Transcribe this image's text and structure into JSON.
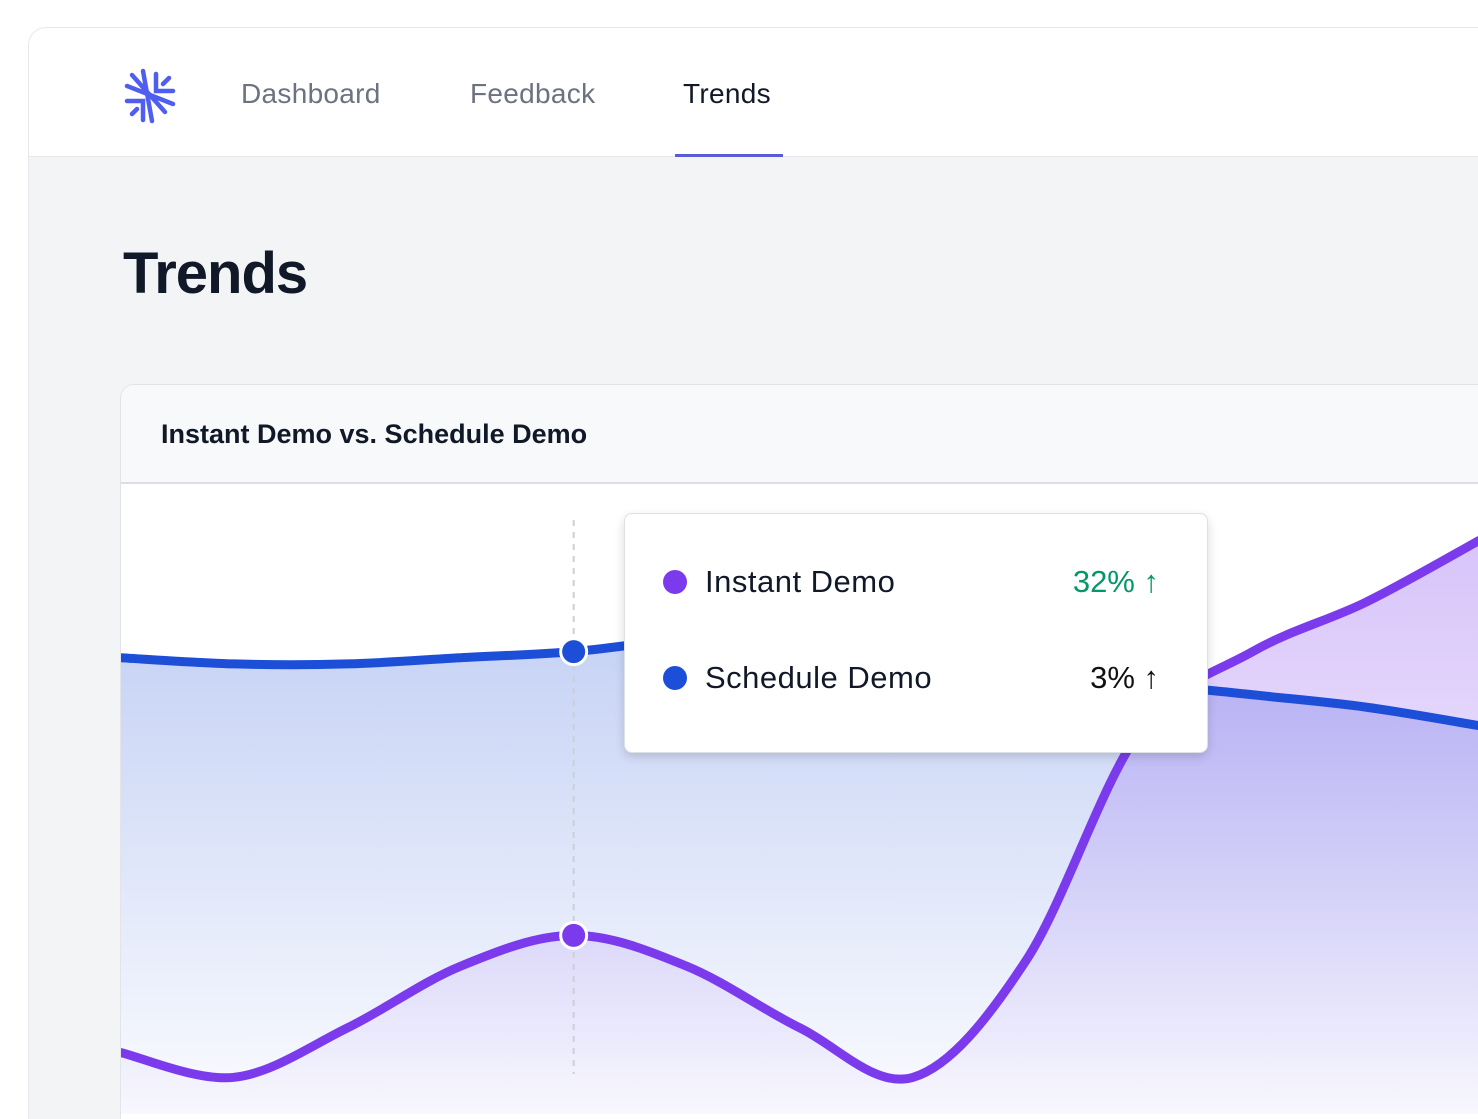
{
  "nav": {
    "tabs": [
      {
        "label": "Dashboard"
      },
      {
        "label": "Feedback"
      },
      {
        "label": "Trends",
        "active": true
      }
    ],
    "logo_icon": "asterisk-burst-logo",
    "accent": "#5b5bd6"
  },
  "page": {
    "title": "Trends"
  },
  "card": {
    "title": "Instant Demo vs. Schedule Demo"
  },
  "tooltip": {
    "rows": [
      {
        "label": "Instant Demo",
        "value": "32% ↑",
        "color": "#7c3aed",
        "value_color": "#059669"
      },
      {
        "label": "Schedule Demo",
        "value": "3% ↑",
        "color": "#1d4ed8",
        "value_color": "#111111"
      }
    ]
  },
  "chart_data": {
    "type": "area",
    "x": [
      0,
      1,
      2,
      3,
      4,
      5,
      6,
      7,
      8,
      9,
      10,
      11,
      12
    ],
    "ylim": [
      0,
      100
    ],
    "grid": false,
    "highlight_index": 4,
    "series": [
      {
        "name": "Schedule Demo",
        "color": "#1d4ed8",
        "values": [
          72,
          71,
          71,
          72,
          73,
          75,
          75,
          74,
          71,
          68,
          66,
          64,
          61
        ]
      },
      {
        "name": "Instant Demo",
        "color": "#7c3aed",
        "values": [
          8,
          4,
          12,
          22,
          27,
          22,
          12,
          4,
          23,
          60,
          73,
          81,
          91
        ]
      }
    ]
  }
}
